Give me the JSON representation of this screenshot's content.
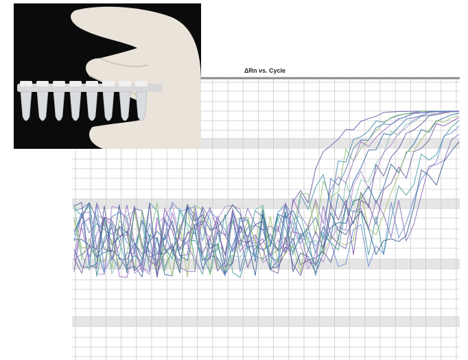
{
  "plot": {
    "title": "ΔRn vs. Cycle"
  }
}
